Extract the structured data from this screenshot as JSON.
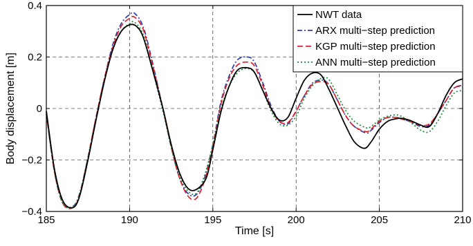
{
  "chart_data": {
    "type": "line",
    "title": "",
    "xlabel": "Time [s]",
    "ylabel": "Body displacement [m]",
    "xlim": [
      185,
      210
    ],
    "ylim": [
      -0.4,
      0.4
    ],
    "xticks": [
      185,
      190,
      195,
      200,
      205,
      210
    ],
    "yticks": [
      -0.4,
      -0.2,
      0,
      0.2,
      0.4
    ],
    "xtick_labels": [
      "185",
      "190",
      "195",
      "200",
      "205",
      "210"
    ],
    "ytick_labels": [
      "−0.4",
      "−0.2",
      "0",
      "0.2",
      "0.4"
    ],
    "grid": true,
    "legend_position": "top-right",
    "series": [
      {
        "name": "NWT data",
        "color": "#000000",
        "dash": "solid",
        "x": [
          185,
          185.5,
          186,
          186.6,
          187,
          187.5,
          188,
          188.5,
          189,
          189.5,
          190,
          190.4,
          190.8,
          191.3,
          192,
          192.5,
          193,
          193.5,
          194,
          194.6,
          195,
          195.5,
          196,
          196.5,
          197.1,
          197.5,
          198,
          198.5,
          199,
          199.5,
          200,
          200.5,
          201,
          201.5,
          202,
          202.5,
          203,
          203.5,
          204.1,
          204.5,
          205,
          205.5,
          206,
          206.3,
          206.8,
          207.5,
          208,
          208.5,
          209,
          209.5,
          210
        ],
        "y": [
          -0.01,
          -0.24,
          -0.36,
          -0.385,
          -0.34,
          -0.2,
          -0.04,
          0.11,
          0.23,
          0.3,
          0.325,
          0.32,
          0.28,
          0.17,
          0.0,
          -0.14,
          -0.25,
          -0.31,
          -0.315,
          -0.27,
          -0.16,
          -0.01,
          0.09,
          0.15,
          0.158,
          0.14,
          0.07,
          0.0,
          -0.045,
          -0.035,
          0.04,
          0.11,
          0.138,
          0.13,
          0.07,
          0.0,
          -0.07,
          -0.13,
          -0.155,
          -0.13,
          -0.08,
          -0.05,
          -0.04,
          -0.038,
          -0.045,
          -0.065,
          -0.07,
          -0.02,
          0.05,
          0.1,
          0.115
        ]
      },
      {
        "name": "ARX multi−step prediction",
        "color": "#2e3ea6",
        "dash": "dashdot",
        "x": [
          185,
          185.5,
          186,
          186.6,
          187,
          187.5,
          188,
          188.5,
          189,
          189.5,
          190,
          190.3,
          190.8,
          191.3,
          192,
          192.5,
          193,
          193.5,
          194,
          194.5,
          195,
          195.5,
          196,
          196.5,
          197.1,
          197.5,
          198,
          198.5,
          199,
          199.5,
          200,
          200.5,
          201,
          201.6,
          202,
          202.5,
          203,
          203.5,
          204.2,
          204.5,
          205,
          205.5,
          206,
          206.3,
          206.8,
          207.5,
          208,
          208.5,
          209,
          209.5,
          210
        ],
        "y": [
          -0.02,
          -0.25,
          -0.37,
          -0.38,
          -0.33,
          -0.19,
          -0.03,
          0.12,
          0.25,
          0.33,
          0.365,
          0.37,
          0.32,
          0.2,
          0.0,
          -0.15,
          -0.27,
          -0.33,
          -0.335,
          -0.27,
          -0.14,
          0.03,
          0.13,
          0.19,
          0.2,
          0.18,
          0.1,
          0.01,
          -0.05,
          -0.06,
          -0.01,
          0.05,
          0.1,
          0.11,
          0.09,
          0.03,
          -0.03,
          -0.07,
          -0.095,
          -0.085,
          -0.055,
          -0.035,
          -0.035,
          -0.04,
          -0.05,
          -0.07,
          -0.065,
          -0.02,
          0.03,
          0.08,
          0.09
        ]
      },
      {
        "name": "KGP multi−step prediction",
        "color": "#e0202a",
        "dash": "dashed",
        "x": [
          185,
          185.5,
          186,
          186.6,
          187,
          187.5,
          188,
          188.5,
          189,
          189.5,
          190,
          190.3,
          190.8,
          191.3,
          192,
          192.5,
          193,
          193.5,
          194,
          194.5,
          195,
          195.5,
          196,
          196.5,
          197.1,
          197.5,
          198,
          198.5,
          199,
          199.5,
          200,
          200.5,
          201,
          201.6,
          202,
          202.5,
          203,
          203.5,
          204.2,
          204.5,
          205,
          205.5,
          206,
          206.3,
          206.8,
          207.5,
          208,
          208.5,
          209,
          209.5,
          210
        ],
        "y": [
          -0.02,
          -0.25,
          -0.37,
          -0.385,
          -0.335,
          -0.19,
          -0.03,
          0.12,
          0.24,
          0.32,
          0.35,
          0.355,
          0.31,
          0.19,
          0.0,
          -0.15,
          -0.27,
          -0.34,
          -0.35,
          -0.28,
          -0.15,
          0.02,
          0.12,
          0.17,
          0.18,
          0.165,
          0.09,
          0.0,
          -0.05,
          -0.055,
          -0.01,
          0.05,
          0.095,
          0.105,
          0.09,
          0.03,
          -0.03,
          -0.07,
          -0.09,
          -0.08,
          -0.05,
          -0.035,
          -0.035,
          -0.04,
          -0.05,
          -0.065,
          -0.06,
          -0.02,
          0.03,
          0.08,
          0.085
        ]
      },
      {
        "name": "ANN multi−step prediction",
        "color": "#1a8a3a",
        "dash": "dotted",
        "x": [
          185,
          185.5,
          186,
          186.6,
          187,
          187.5,
          188,
          188.5,
          189,
          189.5,
          190,
          190.3,
          190.8,
          191.3,
          192,
          192.5,
          193,
          193.5,
          194,
          194.5,
          195,
          195.5,
          196,
          196.5,
          197,
          197.5,
          198,
          198.5,
          199,
          199.5,
          200,
          200.5,
          201,
          201.6,
          202,
          202.5,
          203,
          203.5,
          204.2,
          204.5,
          205,
          205.5,
          206,
          206.3,
          206.8,
          207.5,
          208,
          208.5,
          209,
          209.5,
          210
        ],
        "y": [
          -0.02,
          -0.25,
          -0.37,
          -0.38,
          -0.33,
          -0.19,
          -0.04,
          0.11,
          0.23,
          0.3,
          0.33,
          0.335,
          0.29,
          0.17,
          -0.01,
          -0.15,
          -0.26,
          -0.32,
          -0.33,
          -0.26,
          -0.14,
          0.0,
          0.09,
          0.14,
          0.155,
          0.14,
          0.07,
          -0.01,
          -0.06,
          -0.065,
          -0.03,
          0.04,
          0.09,
          0.12,
          0.11,
          0.05,
          -0.01,
          -0.05,
          -0.075,
          -0.07,
          -0.045,
          -0.03,
          -0.025,
          -0.03,
          -0.05,
          -0.085,
          -0.09,
          -0.05,
          0.01,
          0.06,
          0.07
        ]
      }
    ]
  }
}
